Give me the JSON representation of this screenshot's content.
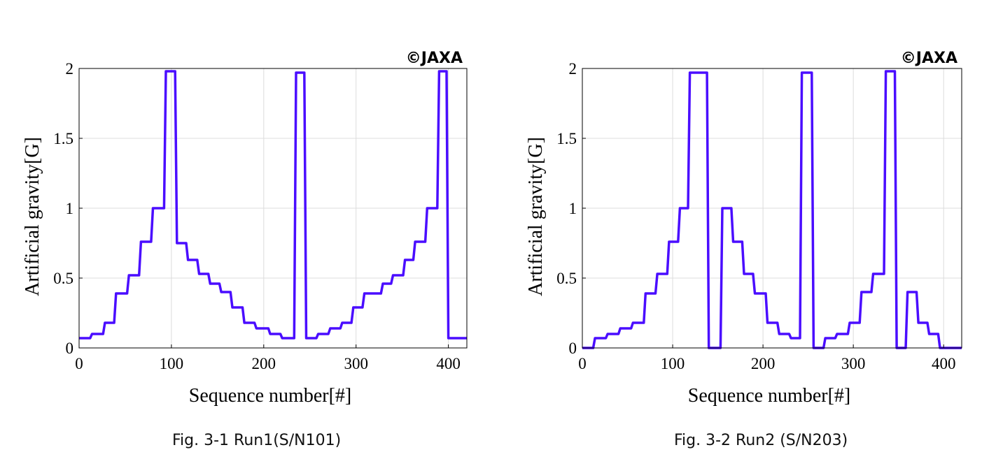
{
  "colors": {
    "series": "#4a0dff",
    "grid": "#dcdcdc",
    "axis": "#000000"
  },
  "captions": [
    "Fig. 3-1 Run1(S/N101)",
    "Fig. 3-2 Run2 (S/N203)"
  ],
  "chart_data": [
    {
      "type": "line",
      "copyright": "©JAXA",
      "xlabel": "Sequence number[#]",
      "ylabel": "Artificial gravity[G]",
      "xlim": [
        0,
        420
      ],
      "ylim": [
        0,
        2
      ],
      "xticks": [
        0,
        100,
        200,
        300,
        400
      ],
      "yticks": [
        0,
        0.5,
        1,
        1.5,
        2
      ],
      "yticklabels": [
        "0",
        "0.5",
        "1",
        "1.5",
        "2"
      ],
      "grid": true,
      "series": [
        {
          "x": [
            0,
            12,
            14,
            26,
            28,
            38,
            40,
            52,
            54,
            65,
            67,
            78,
            80,
            92,
            94,
            104,
            106,
            116,
            118,
            128,
            130,
            140,
            142,
            152,
            154,
            164,
            166,
            177,
            179,
            190,
            192,
            205,
            207,
            218,
            220,
            233,
            235,
            244,
            246,
            257,
            259,
            270,
            272,
            283,
            285,
            295,
            297,
            307,
            309,
            327,
            329,
            338,
            340,
            351,
            353,
            362,
            364,
            375,
            377,
            388,
            390,
            398,
            400,
            409,
            411,
            420
          ],
          "y": [
            0.07,
            0.07,
            0.1,
            0.1,
            0.18,
            0.18,
            0.39,
            0.39,
            0.52,
            0.52,
            0.76,
            0.76,
            1.0,
            1.0,
            1.98,
            1.98,
            0.75,
            0.75,
            0.63,
            0.63,
            0.53,
            0.53,
            0.46,
            0.46,
            0.4,
            0.4,
            0.29,
            0.29,
            0.18,
            0.18,
            0.14,
            0.14,
            0.1,
            0.1,
            0.07,
            0.07,
            1.97,
            1.97,
            0.07,
            0.07,
            0.1,
            0.1,
            0.14,
            0.14,
            0.18,
            0.18,
            0.29,
            0.29,
            0.39,
            0.39,
            0.46,
            0.46,
            0.52,
            0.52,
            0.63,
            0.63,
            0.76,
            0.76,
            1.0,
            1.0,
            1.98,
            1.98,
            0.07,
            0.07,
            0.07,
            0.07
          ]
        }
      ]
    },
    {
      "type": "line",
      "copyright": "©JAXA",
      "xlabel": "Sequence number[#]",
      "ylabel": "Artificial gravity[G]",
      "xlim": [
        0,
        420
      ],
      "ylim": [
        0,
        2
      ],
      "xticks": [
        0,
        100,
        200,
        300,
        400
      ],
      "yticks": [
        0,
        0.5,
        1,
        1.5,
        2
      ],
      "yticklabels": [
        "0",
        "0.5",
        "1",
        "1.5",
        "2"
      ],
      "grid": true,
      "series": [
        {
          "x": [
            0,
            12,
            14,
            26,
            28,
            40,
            42,
            54,
            56,
            68,
            70,
            81,
            83,
            94,
            96,
            106,
            108,
            117,
            119,
            138,
            140,
            153,
            155,
            165,
            167,
            177,
            179,
            189,
            191,
            203,
            205,
            216,
            218,
            229,
            231,
            241,
            243,
            254,
            256,
            267,
            269,
            280,
            282,
            294,
            296,
            307,
            309,
            320,
            322,
            334,
            336,
            346,
            348,
            358,
            360,
            370,
            372,
            382,
            384,
            394,
            396,
            420
          ],
          "y": [
            0.0,
            0.0,
            0.07,
            0.07,
            0.1,
            0.1,
            0.14,
            0.14,
            0.18,
            0.18,
            0.39,
            0.39,
            0.53,
            0.53,
            0.76,
            0.76,
            1.0,
            1.0,
            1.97,
            1.97,
            0.0,
            0.0,
            1.0,
            1.0,
            0.76,
            0.76,
            0.53,
            0.53,
            0.39,
            0.39,
            0.18,
            0.18,
            0.1,
            0.1,
            0.07,
            0.07,
            1.97,
            1.97,
            0.0,
            0.0,
            0.07,
            0.07,
            0.1,
            0.1,
            0.18,
            0.18,
            0.4,
            0.4,
            0.53,
            0.53,
            1.98,
            1.98,
            0.0,
            0.0,
            0.4,
            0.4,
            0.18,
            0.18,
            0.1,
            0.1,
            0.0,
            0.0
          ]
        }
      ]
    }
  ]
}
